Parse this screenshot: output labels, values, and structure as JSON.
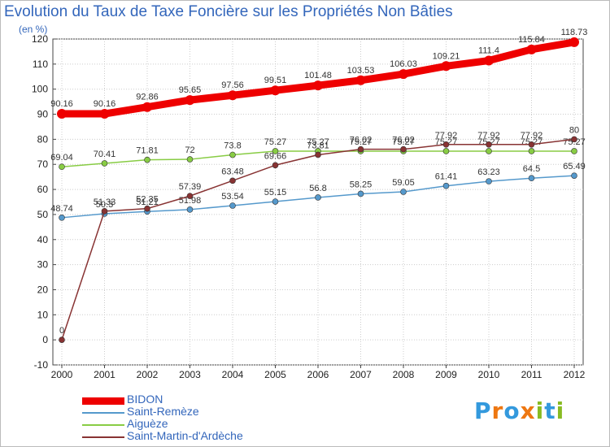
{
  "title": "Evolution du Taux de Taxe Foncière sur les Propriétés Non Bâties",
  "unit": "(en %)",
  "logo": "Proxiti",
  "chart_data": {
    "type": "line",
    "title": "Evolution du Taux de Taxe Foncière sur les Propriétés Non Bâties",
    "ylabel": "(en %)",
    "xlabel": "",
    "x": [
      "2000",
      "2001",
      "2002",
      "2003",
      "2004",
      "2005",
      "2006",
      "2007",
      "2008",
      "2009",
      "2010",
      "2011",
      "2012"
    ],
    "ylim": [
      -10,
      120
    ],
    "yticks": [
      -10,
      0,
      10,
      20,
      30,
      40,
      50,
      60,
      70,
      80,
      90,
      100,
      110,
      120
    ],
    "grid": true,
    "legend_position": "bottom-left",
    "series": [
      {
        "name": "BIDON",
        "color": "#ee0000",
        "values": [
          90.16,
          90.16,
          92.86,
          95.65,
          97.56,
          99.51,
          101.48,
          103.53,
          106.03,
          109.21,
          111.4,
          115.84,
          118.73
        ]
      },
      {
        "name": "Saint-Remèze",
        "color": "#5599cc",
        "values": [
          48.74,
          50.3,
          51.21,
          51.98,
          53.54,
          55.15,
          56.8,
          58.25,
          59.05,
          61.41,
          63.23,
          64.5,
          65.49
        ]
      },
      {
        "name": "Aiguèze",
        "color": "#88cc44",
        "values": [
          69.04,
          70.41,
          71.81,
          72,
          73.8,
          75.27,
          75.27,
          75.27,
          75.27,
          75.27,
          75.27,
          75.27,
          75.27
        ]
      },
      {
        "name": "Saint-Martin-d'Ardèche",
        "color": "#883333",
        "values": [
          0,
          51.33,
          52.35,
          57.39,
          63.48,
          69.66,
          73.81,
          76.02,
          76.02,
          77.92,
          77.92,
          77.92,
          80
        ]
      }
    ]
  }
}
